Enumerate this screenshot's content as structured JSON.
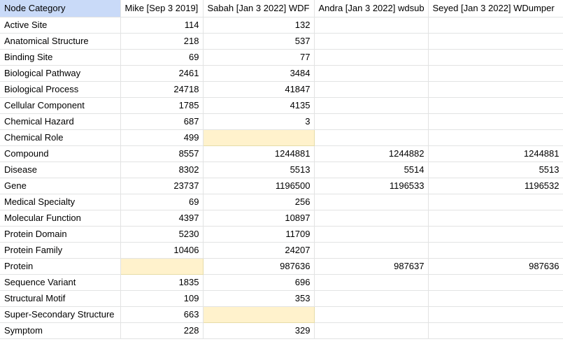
{
  "headers": [
    "Node Category",
    "Mike [Sep 3 2019]",
    "Sabah [Jan 3 2022] WDF",
    "Andra [Jan 3 2022] wdsub",
    "Seyed [Jan 3 2022] WDumper"
  ],
  "colors": {
    "header_highlight": "#c9daf8",
    "empty_cell_highlight": "#fff2cc"
  },
  "rows": [
    {
      "category": "Active Site",
      "mike": "114",
      "sabah": "132",
      "andra": "",
      "seyed": ""
    },
    {
      "category": "Anatomical Structure",
      "mike": "218",
      "sabah": "537",
      "andra": "",
      "seyed": ""
    },
    {
      "category": "Binding Site",
      "mike": "69",
      "sabah": "77",
      "andra": "",
      "seyed": ""
    },
    {
      "category": "Biological Pathway",
      "mike": "2461",
      "sabah": "3484",
      "andra": "",
      "seyed": ""
    },
    {
      "category": "Biological Process",
      "mike": "24718",
      "sabah": "41847",
      "andra": "",
      "seyed": ""
    },
    {
      "category": "Cellular Component",
      "mike": "1785",
      "sabah": "4135",
      "andra": "",
      "seyed": ""
    },
    {
      "category": "Chemical Hazard",
      "mike": "687",
      "sabah": "3",
      "andra": "",
      "seyed": ""
    },
    {
      "category": "Chemical Role",
      "mike": "499",
      "sabah": "",
      "andra": "",
      "seyed": "",
      "highlight": "sabah"
    },
    {
      "category": "Compound",
      "mike": "8557",
      "sabah": "1244881",
      "andra": "1244882",
      "seyed": "1244881"
    },
    {
      "category": "Disease",
      "mike": "8302",
      "sabah": "5513",
      "andra": "5514",
      "seyed": "5513"
    },
    {
      "category": "Gene",
      "mike": "23737",
      "sabah": "1196500",
      "andra": "1196533",
      "seyed": "1196532"
    },
    {
      "category": "Medical Specialty",
      "mike": "69",
      "sabah": "256",
      "andra": "",
      "seyed": ""
    },
    {
      "category": "Molecular Function",
      "mike": "4397",
      "sabah": "10897",
      "andra": "",
      "seyed": ""
    },
    {
      "category": "Protein Domain",
      "mike": "5230",
      "sabah": "11709",
      "andra": "",
      "seyed": ""
    },
    {
      "category": "Protein Family",
      "mike": "10406",
      "sabah": "24207",
      "andra": "",
      "seyed": ""
    },
    {
      "category": "Protein",
      "mike": "",
      "sabah": "987636",
      "andra": "987637",
      "seyed": "987636",
      "highlight": "mike"
    },
    {
      "category": "Sequence Variant",
      "mike": "1835",
      "sabah": "696",
      "andra": "",
      "seyed": ""
    },
    {
      "category": "Structural Motif",
      "mike": "109",
      "sabah": "353",
      "andra": "",
      "seyed": ""
    },
    {
      "category": "Super-Secondary Structure",
      "mike": "663",
      "sabah": "",
      "andra": "",
      "seyed": "",
      "highlight": "sabah"
    },
    {
      "category": "Symptom",
      "mike": "228",
      "sabah": "329",
      "andra": "",
      "seyed": ""
    }
  ]
}
